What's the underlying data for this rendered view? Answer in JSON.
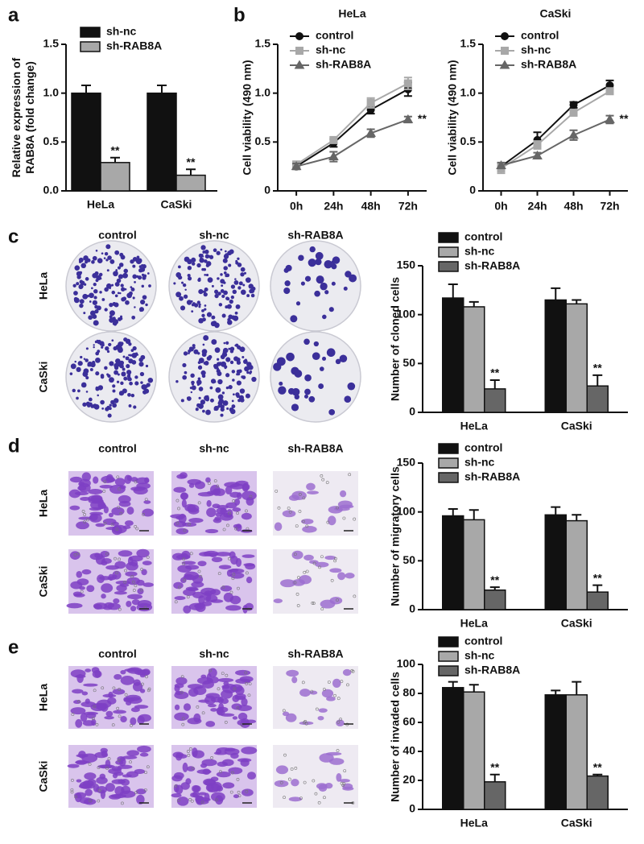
{
  "chart_data": [
    {
      "type": "bar",
      "panel": "a",
      "ylabel": [
        "Relative expression of",
        "RAB8A (fold change)"
      ],
      "categories": [
        "HeLa",
        "CaSki"
      ],
      "series": [
        {
          "name": "sh-nc",
          "color": "#111111",
          "values": [
            1.0,
            1.0
          ],
          "errors": [
            0.08,
            0.08
          ]
        },
        {
          "name": "sh-RAB8A",
          "color": "#a8a8a8",
          "values": [
            0.29,
            0.16
          ],
          "errors": [
            0.05,
            0.06
          ],
          "significance": [
            "**",
            "**"
          ]
        }
      ],
      "ylim": [
        0,
        1.5
      ],
      "yticks": [
        {
          "value": 0,
          "label": "0.0"
        },
        0.5,
        {
          "value": 1,
          "label": "1.0"
        },
        1.5
      ],
      "legend": "upper left"
    },
    {
      "type": "line",
      "panel": "b",
      "title": "HeLa",
      "ylabel": [
        "Cell viability (490 nm)"
      ],
      "categories": [
        "0h",
        "24h",
        "48h",
        "72h"
      ],
      "series": [
        {
          "name": "control",
          "color": "#111111",
          "marker": "circle",
          "values": [
            0.25,
            0.49,
            0.83,
            1.04
          ],
          "errors": [
            0.02,
            0.04,
            0.04,
            0.07
          ]
        },
        {
          "name": "sh-nc",
          "color": "#a8a8a8",
          "marker": "square",
          "values": [
            0.27,
            0.52,
            0.9,
            1.1
          ],
          "errors": [
            0.03,
            0.03,
            0.05,
            0.06
          ]
        },
        {
          "name": "sh-RAB8A",
          "color": "#666666",
          "marker": "triangle",
          "values": [
            0.25,
            0.35,
            0.59,
            0.73
          ],
          "errors": [
            0.03,
            0.05,
            0.04,
            0.03
          ],
          "significance": [
            null,
            null,
            null,
            "**"
          ]
        }
      ],
      "ylim": [
        0,
        1.5
      ],
      "yticks": [
        0,
        0.5,
        {
          "value": 1,
          "label": "1.0"
        },
        1.5
      ],
      "legend": "upper left"
    },
    {
      "type": "line",
      "title": "CaSki",
      "ylabel": [
        "Cell viability (490 nm)"
      ],
      "categories": [
        "0h",
        "24h",
        "48h",
        "72h"
      ],
      "series": [
        {
          "name": "control",
          "color": "#111111",
          "marker": "circle",
          "values": [
            0.25,
            0.52,
            0.88,
            1.08
          ],
          "errors": [
            0.03,
            0.08,
            0.03,
            0.05
          ]
        },
        {
          "name": "sh-nc",
          "color": "#a8a8a8",
          "marker": "square",
          "values": [
            0.23,
            0.47,
            0.8,
            1.02
          ],
          "errors": [
            0.05,
            0.04,
            0.03,
            0.03
          ]
        },
        {
          "name": "sh-RAB8A",
          "color": "#666666",
          "marker": "triangle",
          "values": [
            0.26,
            0.36,
            0.57,
            0.73
          ],
          "errors": [
            0.03,
            0.03,
            0.05,
            0.04
          ],
          "significance": [
            null,
            null,
            null,
            "**"
          ]
        }
      ],
      "ylim": [
        0,
        1.5
      ],
      "yticks": [
        0,
        0.5,
        {
          "value": 1,
          "label": "1.0"
        },
        1.5
      ],
      "legend": "upper left"
    },
    {
      "type": "bar",
      "ylabel": [
        "Number of cloned cells"
      ],
      "categories": [
        "HeLa",
        "CaSki"
      ],
      "series": [
        {
          "name": "control",
          "color": "#111111",
          "values": [
            117,
            115
          ],
          "errors": [
            14,
            12
          ]
        },
        {
          "name": "sh-nc",
          "color": "#a8a8a8",
          "values": [
            108,
            111
          ],
          "errors": [
            5,
            4
          ]
        },
        {
          "name": "sh-RAB8A",
          "color": "#666666",
          "values": [
            24,
            27
          ],
          "errors": [
            9,
            11
          ],
          "significance": [
            "**",
            "**"
          ]
        }
      ],
      "ylim": [
        0,
        150
      ],
      "yticks": [
        0,
        50,
        100,
        150
      ],
      "legend": "upper left"
    },
    {
      "type": "bar",
      "ylabel": [
        "Number of migratory cells"
      ],
      "categories": [
        "HeLa",
        "CaSki"
      ],
      "series": [
        {
          "name": "control",
          "color": "#111111",
          "values": [
            96,
            97
          ],
          "errors": [
            7,
            8
          ]
        },
        {
          "name": "sh-nc",
          "color": "#a8a8a8",
          "values": [
            92,
            91
          ],
          "errors": [
            10,
            6
          ]
        },
        {
          "name": "sh-RAB8A",
          "color": "#666666",
          "values": [
            20,
            18
          ],
          "errors": [
            3,
            7
          ],
          "significance": [
            "**",
            "**"
          ]
        }
      ],
      "ylim": [
        0,
        150
      ],
      "yticks": [
        0,
        50,
        100,
        150
      ],
      "legend": "upper left"
    },
    {
      "type": "bar",
      "ylabel": [
        "Number of invaded cells"
      ],
      "categories": [
        "HeLa",
        "CaSki"
      ],
      "series": [
        {
          "name": "control",
          "color": "#111111",
          "values": [
            84,
            79
          ],
          "errors": [
            4,
            3
          ]
        },
        {
          "name": "sh-nc",
          "color": "#a8a8a8",
          "values": [
            81,
            79
          ],
          "errors": [
            5,
            9
          ]
        },
        {
          "name": "sh-RAB8A",
          "color": "#666666",
          "values": [
            19,
            23
          ],
          "errors": [
            5,
            1
          ],
          "significance": [
            "**",
            "**"
          ]
        }
      ],
      "ylim": [
        0,
        100
      ],
      "yticks": [
        0,
        20,
        40,
        60,
        80,
        100
      ],
      "legend": "upper left"
    }
  ],
  "image_panels": [
    {
      "panel": "c",
      "kind": "colony",
      "columns": [
        "control",
        "sh-nc",
        "sh-RAB8A"
      ],
      "rows": [
        "HeLa",
        "CaSki"
      ]
    },
    {
      "panel": "d",
      "kind": "migration",
      "columns": [
        "control",
        "sh-nc",
        "sh-RAB8A"
      ],
      "rows": [
        "HeLa",
        "CaSki"
      ]
    },
    {
      "panel": "e",
      "kind": "invasion",
      "columns": [
        "control",
        "sh-nc",
        "sh-RAB8A"
      ],
      "rows": [
        "HeLa",
        "CaSki"
      ]
    }
  ]
}
